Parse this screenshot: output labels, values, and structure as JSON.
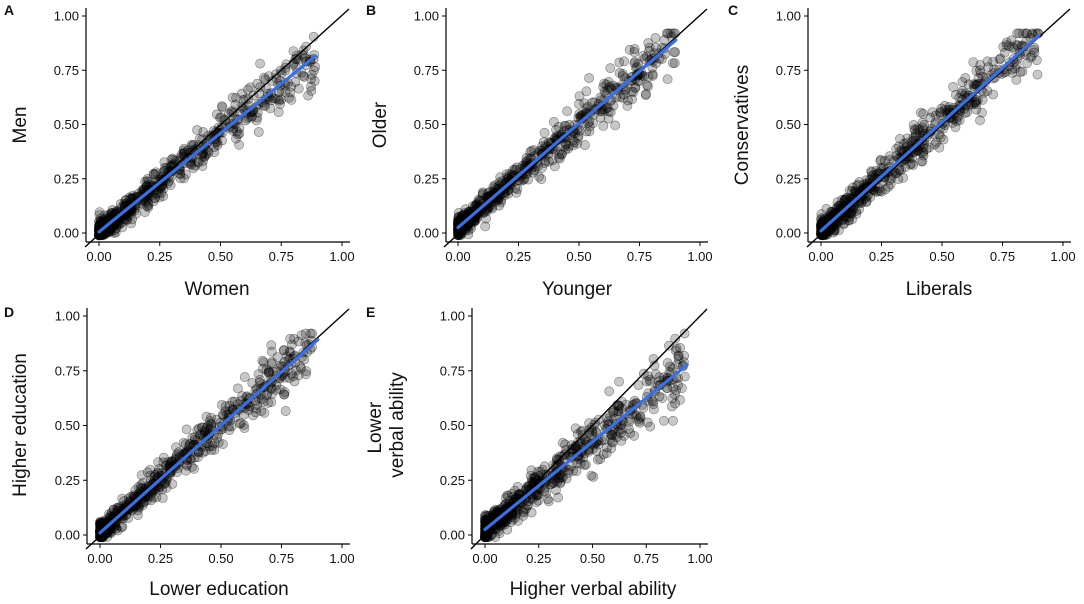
{
  "colors": {
    "point_fill": "#000000",
    "fit_line": "#3b6fe0",
    "identity_line": "#000000",
    "background": "#ffffff"
  },
  "chart_data": [
    {
      "panel": "A",
      "type": "scatter",
      "title": "",
      "xlabel": "Women",
      "ylabel": [
        "Men"
      ],
      "xlim": [
        0,
        1
      ],
      "ylim": [
        0,
        1
      ],
      "xticks": [
        "0.00",
        "0.25",
        "0.50",
        "0.75",
        "1.00"
      ],
      "yticks": [
        "0.00",
        "0.25",
        "0.50",
        "0.75",
        "1.00"
      ],
      "identity_line": {
        "from": [
          0,
          0
        ],
        "to": [
          1,
          1
        ]
      },
      "fit": {
        "slope": 0.91,
        "intercept": 0.005,
        "x_range": [
          0,
          0.89
        ]
      },
      "cloud": {
        "count": 650,
        "x_max": 0.89,
        "spread": 0.055,
        "seed": 11
      },
      "grid": false
    },
    {
      "panel": "B",
      "type": "scatter",
      "title": "",
      "xlabel": "Younger",
      "ylabel": [
        "Older"
      ],
      "xlim": [
        0,
        1
      ],
      "ylim": [
        0,
        1
      ],
      "xticks": [
        "0.00",
        "0.25",
        "0.50",
        "0.75",
        "1.00"
      ],
      "yticks": [
        "0.00",
        "0.25",
        "0.50",
        "0.75",
        "1.00"
      ],
      "identity_line": {
        "from": [
          0,
          0
        ],
        "to": [
          1,
          1
        ]
      },
      "fit": {
        "slope": 0.96,
        "intercept": 0.025,
        "x_range": [
          0,
          0.9
        ]
      },
      "cloud": {
        "count": 650,
        "x_max": 0.9,
        "spread": 0.05,
        "seed": 23
      },
      "grid": false
    },
    {
      "panel": "C",
      "type": "scatter",
      "title": "",
      "xlabel": "Liberals",
      "ylabel": [
        "Conservatives"
      ],
      "xlim": [
        0,
        1
      ],
      "ylim": [
        0,
        1
      ],
      "xticks": [
        "0.00",
        "0.25",
        "0.50",
        "0.75",
        "1.00"
      ],
      "yticks": [
        "0.00",
        "0.25",
        "0.50",
        "0.75",
        "1.00"
      ],
      "identity_line": {
        "from": [
          0,
          0
        ],
        "to": [
          1,
          1
        ]
      },
      "fit": {
        "slope": 1.0,
        "intercept": 0.01,
        "x_range": [
          0,
          0.9
        ]
      },
      "cloud": {
        "count": 650,
        "x_max": 0.9,
        "spread": 0.055,
        "seed": 37
      },
      "grid": false
    },
    {
      "panel": "D",
      "type": "scatter",
      "title": "",
      "xlabel": "Lower education",
      "ylabel": [
        "Higher education"
      ],
      "xlim": [
        0,
        1
      ],
      "ylim": [
        0,
        1
      ],
      "xticks": [
        "0.00",
        "0.25",
        "0.50",
        "0.75",
        "1.00"
      ],
      "yticks": [
        "0.00",
        "0.25",
        "0.50",
        "0.75",
        "1.00"
      ],
      "identity_line": {
        "from": [
          0,
          0
        ],
        "to": [
          1,
          1
        ]
      },
      "fit": {
        "slope": 0.98,
        "intercept": 0.01,
        "x_range": [
          0,
          0.9
        ]
      },
      "cloud": {
        "count": 650,
        "x_max": 0.88,
        "spread": 0.05,
        "seed": 41
      },
      "grid": false
    },
    {
      "panel": "E",
      "type": "scatter",
      "title": "",
      "xlabel": "Higher verbal ability",
      "ylabel": [
        "Lower",
        "verbal ability"
      ],
      "xlim": [
        0,
        1
      ],
      "ylim": [
        0,
        1
      ],
      "xticks": [
        "0.00",
        "0.25",
        "0.50",
        "0.75",
        "1.00"
      ],
      "yticks": [
        "0.00",
        "0.25",
        "0.50",
        "0.75",
        "1.00"
      ],
      "identity_line": {
        "from": [
          0,
          0
        ],
        "to": [
          1,
          1
        ]
      },
      "fit": {
        "slope": 0.8,
        "intercept": 0.025,
        "x_range": [
          0,
          0.94
        ]
      },
      "cloud": {
        "count": 650,
        "x_max": 0.93,
        "spread": 0.06,
        "seed": 53
      },
      "grid": false
    }
  ]
}
